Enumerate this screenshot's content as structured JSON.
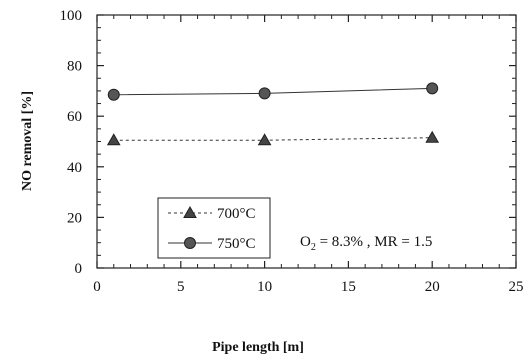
{
  "chart_data": {
    "type": "line",
    "xlabel": "Pipe length [m]",
    "ylabel": "NO removal [%]",
    "xlim": [
      0,
      25
    ],
    "ylim": [
      0,
      100
    ],
    "xticks": [
      0,
      5,
      10,
      15,
      20,
      25
    ],
    "yticks": [
      0,
      20,
      40,
      60,
      80,
      100
    ],
    "x_minor_step": 1,
    "y_minor_step": 5,
    "grid": false,
    "legend_position": "lower-left",
    "series": [
      {
        "name": "700°C",
        "marker": "triangle",
        "line": "dashed",
        "color": "#333333",
        "x": [
          1,
          10,
          20
        ],
        "y": [
          50.5,
          50.5,
          51.5
        ]
      },
      {
        "name": "750°C",
        "marker": "circle",
        "line": "solid",
        "color": "#333333",
        "x": [
          1,
          10,
          20
        ],
        "y": [
          68.5,
          69,
          71
        ]
      }
    ],
    "annotation": {
      "prefix": "O",
      "sub": "2",
      "suffix": " = 8.3% , MR = 1.5"
    }
  }
}
